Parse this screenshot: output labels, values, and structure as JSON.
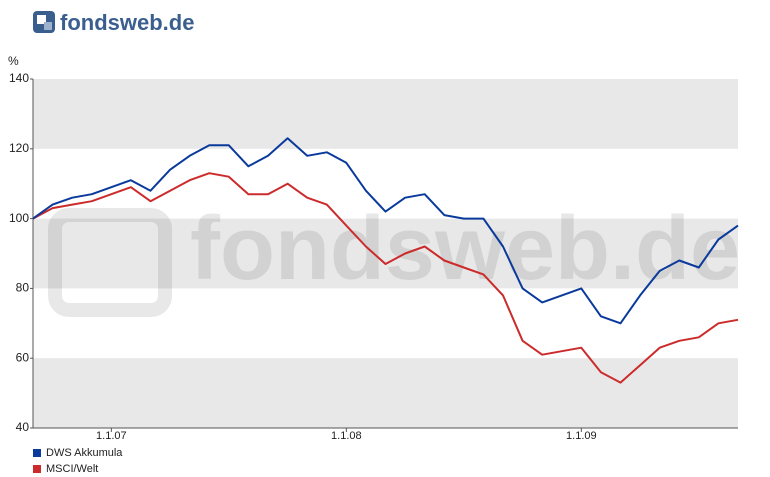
{
  "brand": "fondsweb.de",
  "chart_data": {
    "type": "line",
    "y_label": "%",
    "watermark": "fondsweb.de",
    "categories": [
      null,
      null,
      null,
      null,
      "1.1.07",
      null,
      null,
      null,
      null,
      null,
      null,
      null,
      null,
      null,
      null,
      null,
      "1.1.08",
      null,
      null,
      null,
      null,
      null,
      null,
      null,
      null,
      null,
      null,
      null,
      "1.1.09",
      null,
      null,
      null,
      null,
      null,
      null,
      null,
      null
    ],
    "series": [
      {
        "name": "DWS Akkumula",
        "color": "#0a3a9c",
        "values": [
          100,
          104,
          106,
          107,
          109,
          111,
          108,
          114,
          118,
          121,
          121,
          115,
          118,
          123,
          118,
          119,
          116,
          108,
          102,
          106,
          107,
          101,
          100,
          100,
          92,
          80,
          76,
          78,
          80,
          72,
          70,
          78,
          85,
          88,
          86,
          94,
          98
        ]
      },
      {
        "name": "MSCI/Welt",
        "color": "#cc2b2b",
        "values": [
          100,
          103,
          104,
          105,
          107,
          109,
          105,
          108,
          111,
          113,
          112,
          107,
          107,
          110,
          106,
          104,
          98,
          92,
          87,
          90,
          92,
          88,
          86,
          84,
          78,
          65,
          61,
          62,
          63,
          56,
          53,
          58,
          63,
          65,
          66,
          70,
          71
        ]
      }
    ],
    "ylim": [
      40,
      140
    ],
    "yticks": [
      40,
      60,
      80,
      100,
      120,
      140
    ],
    "grid": true
  }
}
